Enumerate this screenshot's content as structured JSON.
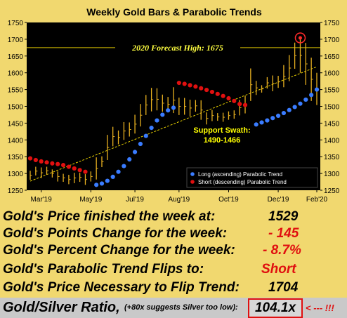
{
  "chart_data": {
    "type": "bar",
    "title": "Weekly Gold Bars & Parabolic Trends",
    "ylim": [
      1250,
      1750
    ],
    "yticks": [
      1250,
      1300,
      1350,
      1400,
      1450,
      1500,
      1550,
      1600,
      1650,
      1700,
      1750
    ],
    "xticks": [
      "Mar'19",
      "May'19",
      "Jul'19",
      "Aug'19",
      "Oct'19",
      "Dec'19",
      "Feb'20"
    ],
    "grid": false,
    "background": "#000000",
    "bar_color": "#e8b020",
    "weeks": 53,
    "bars": [
      {
        "h": 1308,
        "l": 1281
      },
      {
        "h": 1320,
        "l": 1294
      },
      {
        "h": 1318,
        "l": 1286
      },
      {
        "h": 1320,
        "l": 1296
      },
      {
        "h": 1312,
        "l": 1288
      },
      {
        "h": 1306,
        "l": 1276
      },
      {
        "h": 1299,
        "l": 1275
      },
      {
        "h": 1296,
        "l": 1268
      },
      {
        "h": 1302,
        "l": 1271
      },
      {
        "h": 1302,
        "l": 1275
      },
      {
        "h": 1298,
        "l": 1266
      },
      {
        "h": 1306,
        "l": 1276
      },
      {
        "h": 1348,
        "l": 1282
      },
      {
        "h": 1351,
        "l": 1319
      },
      {
        "h": 1415,
        "l": 1340
      },
      {
        "h": 1439,
        "l": 1381
      },
      {
        "h": 1428,
        "l": 1387
      },
      {
        "h": 1453,
        "l": 1400
      },
      {
        "h": 1452,
        "l": 1410
      },
      {
        "h": 1475,
        "l": 1419
      },
      {
        "h": 1507,
        "l": 1440
      },
      {
        "h": 1534,
        "l": 1474
      },
      {
        "h": 1555,
        "l": 1485
      },
      {
        "h": 1554,
        "l": 1488
      },
      {
        "h": 1535,
        "l": 1484
      },
      {
        "h": 1528,
        "l": 1484
      },
      {
        "h": 1557,
        "l": 1480
      },
      {
        "h": 1526,
        "l": 1474
      },
      {
        "h": 1525,
        "l": 1475
      },
      {
        "h": 1520,
        "l": 1470
      },
      {
        "h": 1519,
        "l": 1484
      },
      {
        "h": 1518,
        "l": 1460
      },
      {
        "h": 1482,
        "l": 1446
      },
      {
        "h": 1489,
        "l": 1456
      },
      {
        "h": 1480,
        "l": 1457
      },
      {
        "h": 1481,
        "l": 1454
      },
      {
        "h": 1485,
        "l": 1460
      },
      {
        "h": 1488,
        "l": 1463
      },
      {
        "h": 1519,
        "l": 1473
      },
      {
        "h": 1531,
        "l": 1479
      },
      {
        "h": 1613,
        "l": 1516
      },
      {
        "h": 1576,
        "l": 1534
      },
      {
        "h": 1563,
        "l": 1541
      },
      {
        "h": 1587,
        "l": 1553
      },
      {
        "h": 1592,
        "l": 1545
      },
      {
        "h": 1591,
        "l": 1555
      },
      {
        "h": 1623,
        "l": 1557
      },
      {
        "h": 1653,
        "l": 1575
      },
      {
        "h": 1690,
        "l": 1612
      },
      {
        "h": 1704,
        "l": 1600
      },
      {
        "h": 1689,
        "l": 1564
      },
      {
        "h": 1645,
        "l": 1516
      },
      {
        "h": 1600,
        "l": 1504
      }
    ],
    "series": [
      {
        "name": "Long (ascending) Parabolic Trend",
        "color": "#3a7cff",
        "points": [
          [
            12,
            1266
          ],
          [
            13,
            1270
          ],
          [
            14,
            1278
          ],
          [
            15,
            1290
          ],
          [
            16,
            1305
          ],
          [
            17,
            1322
          ],
          [
            18,
            1342
          ],
          [
            19,
            1364
          ],
          [
            20,
            1388
          ],
          [
            21,
            1412
          ],
          [
            22,
            1436
          ],
          [
            23,
            1458
          ],
          [
            24,
            1475
          ],
          [
            25,
            1488
          ],
          [
            26,
            1496
          ],
          [
            41,
            1446
          ],
          [
            42,
            1452
          ],
          [
            43,
            1458
          ],
          [
            44,
            1465
          ],
          [
            45,
            1472
          ],
          [
            46,
            1480
          ],
          [
            47,
            1489
          ],
          [
            48,
            1498
          ],
          [
            49,
            1508
          ],
          [
            50,
            1520
          ],
          [
            51,
            1534
          ],
          [
            52,
            1550
          ]
        ]
      },
      {
        "name": "Short (descending) Parabolic Trend",
        "color": "#e01010",
        "points": [
          [
            0,
            1345
          ],
          [
            1,
            1340
          ],
          [
            2,
            1336
          ],
          [
            3,
            1333
          ],
          [
            4,
            1330
          ],
          [
            5,
            1328
          ],
          [
            6,
            1325
          ],
          [
            7,
            1320
          ],
          [
            8,
            1315
          ],
          [
            9,
            1310
          ],
          [
            10,
            1305
          ],
          [
            27,
            1570
          ],
          [
            28,
            1567
          ],
          [
            29,
            1563
          ],
          [
            30,
            1559
          ],
          [
            31,
            1554
          ],
          [
            32,
            1549
          ],
          [
            33,
            1543
          ],
          [
            34,
            1537
          ],
          [
            35,
            1531
          ],
          [
            36,
            1524
          ],
          [
            37,
            1516
          ],
          [
            38,
            1507
          ],
          [
            39,
            1504
          ]
        ]
      }
    ],
    "forecast": {
      "value": 1675,
      "label": "2020 Forecast High:  1675",
      "color": "#d8c000"
    },
    "trendline": {
      "from": [
        0,
        1277
      ],
      "to": [
        52,
        1618
      ],
      "color": "#e8d000"
    },
    "circle_marker": {
      "x": 49,
      "y": 1704,
      "color": "#ff2a2a"
    },
    "annotation": {
      "line1": "Support Swath:",
      "line2": "1490-1466",
      "color": "#ffff00"
    },
    "legend_position": "bottom-right"
  },
  "stats": [
    {
      "label": "Gold's Price finished the week at:",
      "value": "1529",
      "color": "#000000"
    },
    {
      "label": "Gold's Points Change for the week:",
      "value": "- 145",
      "color": "#e01010"
    },
    {
      "label": "Gold's Percent Change for the week:",
      "value": "- 8.7%",
      "color": "#e01010"
    },
    {
      "label": "Gold's Parabolic Trend Flips to:",
      "value": "Short",
      "color": "#e01010"
    },
    {
      "label": "Gold's Price Necessary to Flip Trend:",
      "value": "1704",
      "color": "#000000"
    }
  ],
  "ratio": {
    "label": "Gold/Silver Ratio,",
    "note": "(+80x suggests Silver too low):",
    "value": "104.1x",
    "arrow": "< --- !!!"
  }
}
